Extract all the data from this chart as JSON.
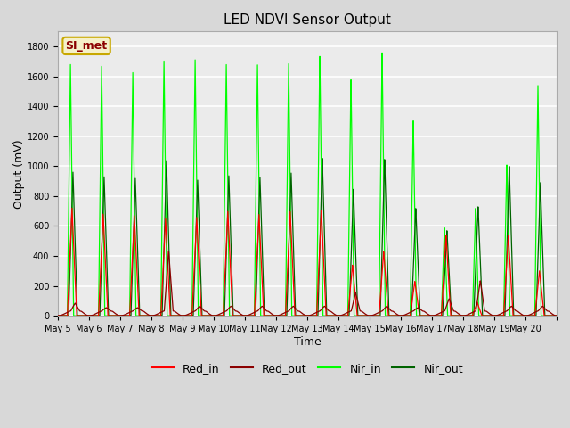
{
  "title": "LED NDVI Sensor Output",
  "xlabel": "Time",
  "ylabel": "Output (mV)",
  "ylim": [
    0,
    1900
  ],
  "yticks": [
    0,
    200,
    400,
    600,
    800,
    1000,
    1200,
    1400,
    1600,
    1800
  ],
  "annotation_text": "SI_met",
  "annotation_bg": "#f5f0c8",
  "annotation_border": "#c8a800",
  "annotation_text_color": "#8b0000",
  "colors": {
    "Red_in": "#ff0000",
    "Red_out": "#8b0000",
    "Nir_in": "#00ff00",
    "Nir_out": "#006400"
  },
  "background_color": "#d8d8d8",
  "plot_bg": "#ebebeb",
  "grid_color": "#ffffff",
  "n_days": 16,
  "red_in_peaks": [
    720,
    680,
    670,
    650,
    660,
    700,
    680,
    700,
    710,
    340,
    430,
    230,
    540,
    90,
    540,
    300
  ],
  "red_out_peaks": [
    50,
    20,
    20,
    400,
    30,
    30,
    30,
    30,
    30,
    120,
    30,
    20,
    80,
    200,
    30,
    30
  ],
  "nir_in_peaks": [
    1680,
    1670,
    1630,
    1710,
    1720,
    1690,
    1690,
    1700,
    1750,
    1590,
    1770,
    1310,
    590,
    720,
    1010,
    1540
  ],
  "nir_out_peaks": [
    960,
    930,
    920,
    1040,
    910,
    940,
    930,
    960,
    1060,
    850,
    1050,
    720,
    570,
    730,
    1000,
    890
  ],
  "x_tick_labels": [
    "May 5",
    "May 6",
    "May 7",
    "May 8",
    "May 9",
    "May 10",
    "May 11",
    "May 12",
    "May 13",
    "May 14",
    "May 15",
    "May 16",
    "May 17",
    "May 18",
    "May 19",
    "May 20"
  ]
}
